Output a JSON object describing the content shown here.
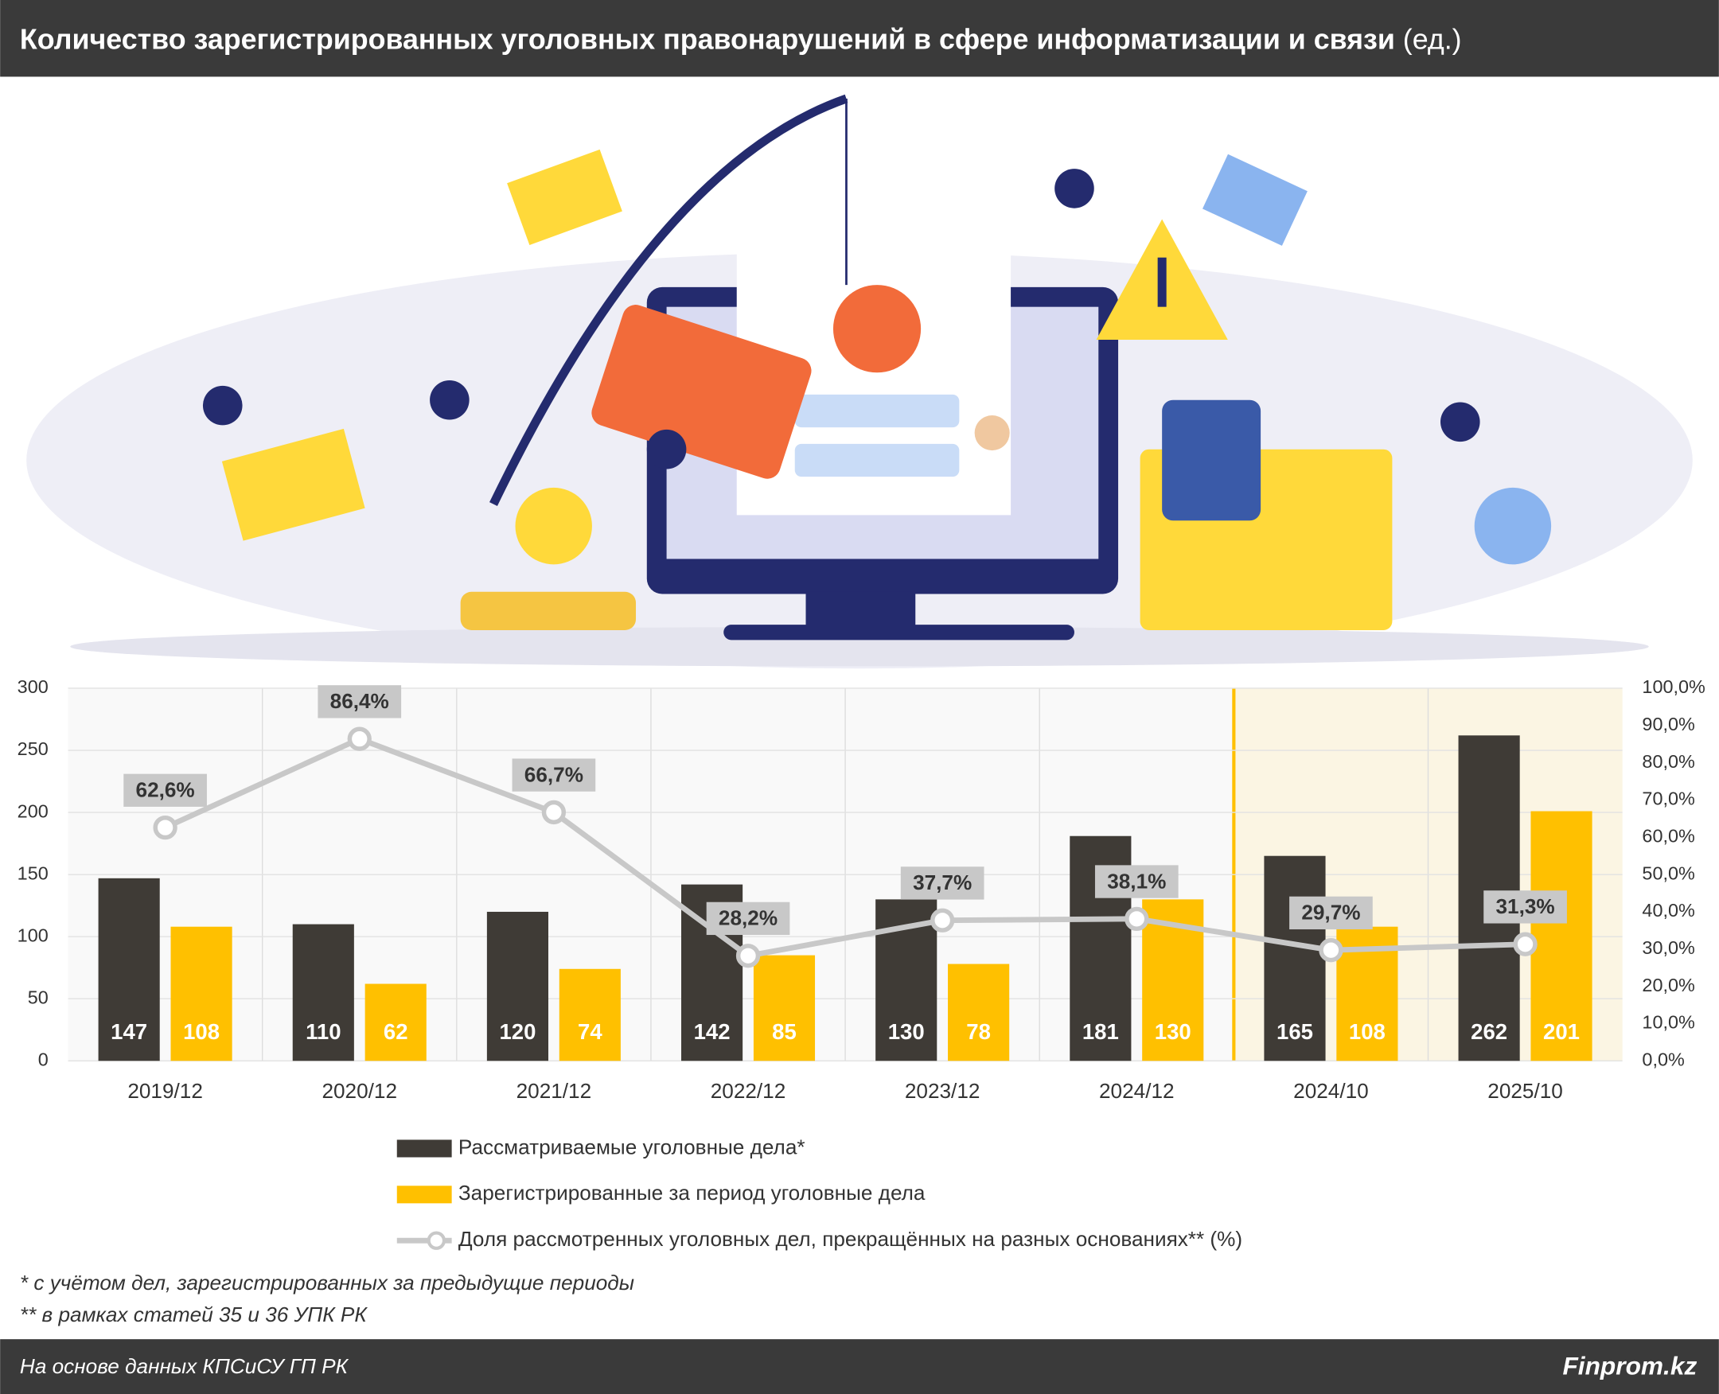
{
  "chart_data": {
    "type": "bar",
    "title": "Количество зарегистрированных уголовных правонарушений в сфере информатизации и связи",
    "unit": "(ед.)",
    "categories": [
      "2019/12",
      "2020/12",
      "2021/12",
      "2022/12",
      "2023/12",
      "2024/12",
      "2024/10",
      "2025/10"
    ],
    "series": [
      {
        "name": "Рассматриваемые уголовные дела*",
        "type": "bar",
        "color": "#3f3b36",
        "values": [
          147,
          110,
          120,
          142,
          130,
          181,
          165,
          262
        ]
      },
      {
        "name": "Зарегистрированные за период уголовные дела",
        "type": "bar",
        "color": "#ffc000",
        "values": [
          108,
          62,
          74,
          85,
          78,
          130,
          108,
          201
        ]
      },
      {
        "name": "Доля рассмотренных уголовных дел, прекращённых на разных основаниях** (%)",
        "type": "line",
        "axis": "y2",
        "color": "#c8c8c8",
        "values": [
          62.6,
          86.4,
          66.7,
          28.2,
          37.7,
          38.1,
          29.7,
          31.3
        ],
        "value_labels": [
          "62,6%",
          "86,4%",
          "66,7%",
          "28,2%",
          "37,7%",
          "38,1%",
          "29,7%",
          "31,3%"
        ]
      }
    ],
    "ylim": [
      0,
      300
    ],
    "yticks": [
      0,
      50,
      100,
      150,
      200,
      250,
      300
    ],
    "y2lim": [
      0,
      100
    ],
    "y2ticks": [
      {
        "value": 0,
        "label": "0,0%"
      },
      {
        "value": 10,
        "label": "10,0%"
      },
      {
        "value": 20,
        "label": "20,0%"
      },
      {
        "value": 30,
        "label": "30,0%"
      },
      {
        "value": 40,
        "label": "40,0%"
      },
      {
        "value": 50,
        "label": "50,0%"
      },
      {
        "value": 60,
        "label": "60,0%"
      },
      {
        "value": 70,
        "label": "70,0%"
      },
      {
        "value": 80,
        "label": "80,0%"
      },
      {
        "value": 90,
        "label": "90,0%"
      },
      {
        "value": 100,
        "label": "100,0%"
      }
    ],
    "grid": true,
    "footnotes": [
      "* с учётом дел, зарегистрированных за предыдущие периоды",
      "** в рамках статей 35 и 36 УПК РК"
    ],
    "source": "На основе данных КПСиСУ ГП РК",
    "brand": "Finprom.kz"
  }
}
